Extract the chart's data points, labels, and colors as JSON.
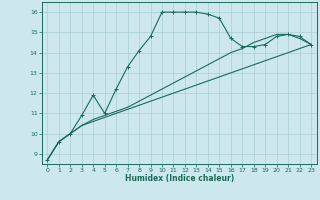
{
  "xlabel": "Humidex (Indice chaleur)",
  "background_color": "#cce8ec",
  "grid_color": "#aacdd4",
  "line_color": "#1a6b5a",
  "xlim": [
    -0.5,
    23.5
  ],
  "ylim": [
    8.5,
    16.5
  ],
  "xticks": [
    0,
    1,
    2,
    3,
    4,
    5,
    6,
    7,
    8,
    9,
    10,
    11,
    12,
    13,
    14,
    15,
    16,
    17,
    18,
    19,
    20,
    21,
    22,
    23
  ],
  "yticks": [
    9,
    10,
    11,
    12,
    13,
    14,
    15,
    16
  ],
  "line1_x": [
    0,
    1,
    2,
    3,
    4,
    5,
    6,
    7,
    8,
    9,
    10,
    11,
    12,
    13,
    14,
    15,
    16,
    17,
    18,
    19,
    20,
    21,
    22,
    23
  ],
  "line1_y": [
    8.7,
    9.6,
    10.0,
    10.4,
    10.6,
    10.8,
    11.0,
    11.2,
    11.4,
    11.6,
    11.8,
    12.0,
    12.2,
    12.4,
    12.6,
    12.8,
    13.0,
    13.2,
    13.4,
    13.6,
    13.8,
    14.0,
    14.2,
    14.4
  ],
  "line2_x": [
    0,
    1,
    2,
    3,
    4,
    5,
    6,
    7,
    8,
    9,
    10,
    11,
    12,
    13,
    14,
    15,
    16,
    17,
    18,
    19,
    20,
    21,
    22,
    23
  ],
  "line2_y": [
    8.7,
    9.6,
    10.0,
    10.4,
    10.7,
    10.9,
    11.1,
    11.3,
    11.6,
    11.9,
    12.2,
    12.5,
    12.8,
    13.1,
    13.4,
    13.7,
    14.0,
    14.2,
    14.5,
    14.7,
    14.9,
    14.9,
    14.7,
    14.4
  ],
  "line3_x": [
    0,
    1,
    2,
    3,
    4,
    5,
    6,
    7,
    8,
    9,
    10,
    11,
    12,
    13,
    14,
    15,
    16,
    17,
    18,
    19,
    20,
    21,
    22,
    23
  ],
  "line3_y": [
    8.7,
    9.6,
    10.0,
    10.9,
    11.9,
    11.0,
    12.2,
    13.3,
    14.1,
    14.8,
    16.0,
    16.0,
    16.0,
    16.0,
    15.9,
    15.7,
    14.7,
    14.3,
    14.3,
    14.4,
    14.8,
    14.9,
    14.8,
    14.4
  ]
}
